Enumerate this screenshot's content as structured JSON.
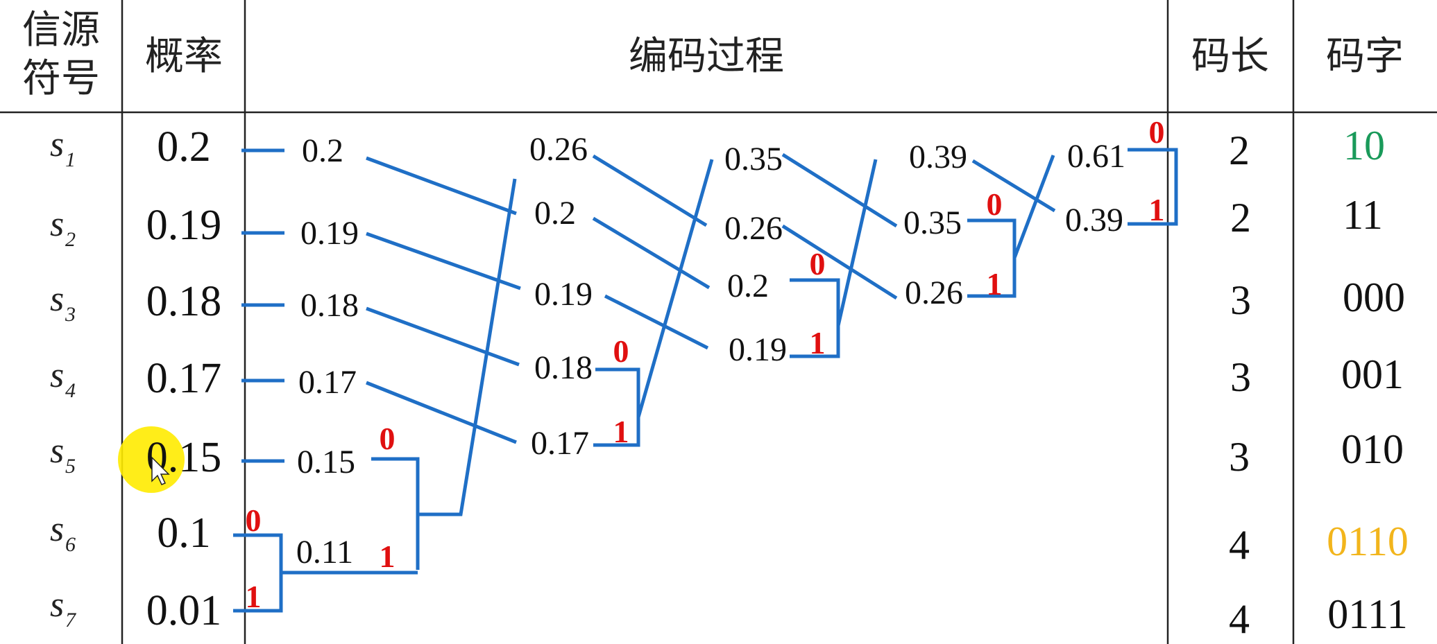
{
  "headers": {
    "source_line1": "信源",
    "source_line2": "符号",
    "probability": "概率",
    "process": "编码过程",
    "length": "码长",
    "codeword": "码字"
  },
  "colors": {
    "wire": "#1f6fc6",
    "bit": "#e01010",
    "code_default": "#111111",
    "code_s1": "#1a9a5a",
    "code_s6": "#f2b51c",
    "cursor_highlight": "#ffeb00"
  },
  "rows": [
    {
      "symbol": "s",
      "sub": "1",
      "prob": "0.2",
      "length": "2",
      "code": "10",
      "code_color": "#1a9a5a"
    },
    {
      "symbol": "s",
      "sub": "2",
      "prob": "0.19",
      "length": "2",
      "code": "11",
      "code_color": "#111111"
    },
    {
      "symbol": "s",
      "sub": "3",
      "prob": "0.18",
      "length": "3",
      "code": "000",
      "code_color": "#111111"
    },
    {
      "symbol": "s",
      "sub": "4",
      "prob": "0.17",
      "length": "3",
      "code": "001",
      "code_color": "#111111"
    },
    {
      "symbol": "s",
      "sub": "5",
      "prob": "0.15",
      "length": "3",
      "code": "010",
      "code_color": "#111111"
    },
    {
      "symbol": "s",
      "sub": "6",
      "prob": "0.1",
      "length": "4",
      "code": "0110",
      "code_color": "#f2b51c"
    },
    {
      "symbol": "s",
      "sub": "7",
      "prob": "0.01",
      "length": "4",
      "code": "0111",
      "code_color": "#111111"
    }
  ],
  "stages": [
    [
      "0.2",
      "0.19",
      "0.18",
      "0.17",
      "0.15",
      "0.11"
    ],
    [
      "0.26",
      "0.2",
      "0.19",
      "0.18",
      "0.17"
    ],
    [
      "0.35",
      "0.26",
      "0.2",
      "0.19"
    ],
    [
      "0.39",
      "0.35",
      "0.26"
    ],
    [
      "0.61",
      "0.39"
    ]
  ],
  "bits": [
    "0",
    "1"
  ]
}
